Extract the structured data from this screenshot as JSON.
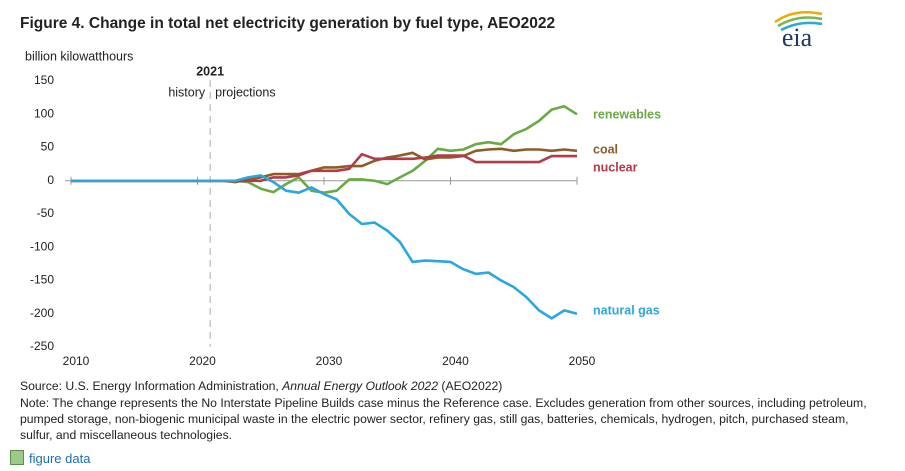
{
  "chart_data": {
    "type": "line",
    "title": "Figure 4. Change in total net electricity generation by fuel type, AEO2022",
    "y_axis_label": "billion kilowatthours",
    "divider": 2021,
    "divider_left": "history",
    "divider_right": "projections",
    "x": [
      2010,
      2011,
      2012,
      2013,
      2014,
      2015,
      2016,
      2017,
      2018,
      2019,
      2020,
      2021,
      2022,
      2023,
      2024,
      2025,
      2026,
      2027,
      2028,
      2029,
      2030,
      2031,
      2032,
      2033,
      2034,
      2035,
      2036,
      2037,
      2038,
      2039,
      2040,
      2041,
      2042,
      2043,
      2044,
      2045,
      2046,
      2047,
      2048,
      2049,
      2050
    ],
    "xlim": [
      2010,
      2050
    ],
    "xticks": [
      2010,
      2020,
      2030,
      2040,
      2050
    ],
    "ylim": [
      -250,
      150
    ],
    "yticks": [
      -250,
      -200,
      -150,
      -100,
      -50,
      0,
      50,
      100,
      150
    ],
    "series": [
      {
        "name": "renewables",
        "color": "#6aaa45",
        "values": [
          0,
          0,
          0,
          0,
          0,
          0,
          0,
          0,
          0,
          0,
          0,
          0,
          0,
          0,
          -2,
          -12,
          -17,
          -5,
          5,
          -15,
          -18,
          -15,
          2,
          2,
          0,
          -5,
          5,
          15,
          30,
          48,
          45,
          47,
          55,
          58,
          55,
          70,
          78,
          90,
          107,
          112,
          100
        ]
      },
      {
        "name": "coal",
        "color": "#8c5e27",
        "values": [
          0,
          0,
          0,
          0,
          0,
          0,
          0,
          0,
          0,
          0,
          0,
          0,
          0,
          -2,
          2,
          5,
          10,
          10,
          10,
          15,
          20,
          20,
          22,
          22,
          30,
          35,
          38,
          42,
          32,
          35,
          35,
          37,
          45,
          47,
          48,
          45,
          47,
          47,
          45,
          47,
          45
        ]
      },
      {
        "name": "nuclear",
        "color": "#b23a4a",
        "values": [
          0,
          0,
          0,
          0,
          0,
          0,
          0,
          0,
          0,
          0,
          0,
          0,
          0,
          0,
          0,
          0,
          5,
          5,
          8,
          15,
          15,
          15,
          18,
          40,
          33,
          33,
          33,
          33,
          35,
          38,
          38,
          38,
          28,
          28,
          28,
          28,
          28,
          28,
          37,
          37,
          37
        ]
      },
      {
        "name": "natural gas",
        "color": "#2ba6de",
        "values": [
          0,
          0,
          0,
          0,
          0,
          0,
          0,
          0,
          0,
          0,
          0,
          0,
          0,
          0,
          5,
          8,
          -2,
          -15,
          -18,
          -10,
          -20,
          -28,
          -50,
          -65,
          -63,
          -75,
          -92,
          -122,
          -120,
          -121,
          -122,
          -133,
          -140,
          -138,
          -150,
          -160,
          -175,
          -195,
          -207,
          -195,
          -200
        ]
      }
    ]
  },
  "logo": "eia",
  "source": [
    "Source: U.S. Energy Information Administration, ",
    "Annual Energy Outlook 2022",
    " (AEO2022)"
  ],
  "note": "Note: The change represents the No Interstate Pipeline Builds case minus the Reference case. Excludes generation from other sources, including petroleum, pumped storage, non-biogenic municipal waste in the electric power sector, refinery gas, still gas, batteries, chemicals, hydrogen, pitch, purchased steam, sulfur, and miscellaneous technologies.",
  "link": "figure data"
}
